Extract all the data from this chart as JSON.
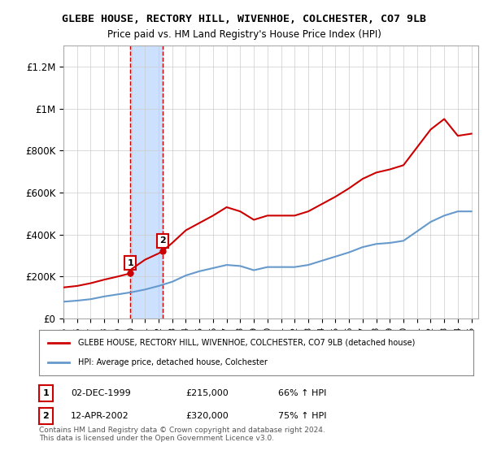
{
  "title": "GLEBE HOUSE, RECTORY HILL, WIVENHOE, COLCHESTER, CO7 9LB",
  "subtitle": "Price paid vs. HM Land Registry's House Price Index (HPI)",
  "xlabel": "",
  "ylabel": "",
  "ylim": [
    0,
    1300000
  ],
  "xlim_start": 1995.0,
  "xlim_end": 2025.5,
  "yticks": [
    0,
    200000,
    400000,
    600000,
    800000,
    1000000,
    1200000
  ],
  "ytick_labels": [
    "£0",
    "£200K",
    "£400K",
    "£600K",
    "£800K",
    "£1M",
    "£1.2M"
  ],
  "sale1_date": 1999.92,
  "sale1_price": 215000,
  "sale2_date": 2002.28,
  "sale2_price": 320000,
  "shade_x1": 1999.92,
  "shade_x2": 2002.28,
  "shade_color": "#cce0ff",
  "dashed_color": "#cc0000",
  "red_line_color": "#cc0000",
  "blue_line_color": "#6699cc",
  "legend_entry1": "GLEBE HOUSE, RECTORY HILL, WIVENHOE, COLCHESTER, CO7 9LB (detached house)",
  "legend_entry2": "HPI: Average price, detached house, Colchester",
  "table_row1": [
    "1",
    "02-DEC-1999",
    "£215,000",
    "66% ↑ HPI"
  ],
  "table_row2": [
    "2",
    "12-APR-2002",
    "£320,000",
    "75% ↑ HPI"
  ],
  "footnote": "Contains HM Land Registry data © Crown copyright and database right 2024.\nThis data is licensed under the Open Government Licence v3.0.",
  "background_color": "#ffffff",
  "grid_color": "#cccccc"
}
